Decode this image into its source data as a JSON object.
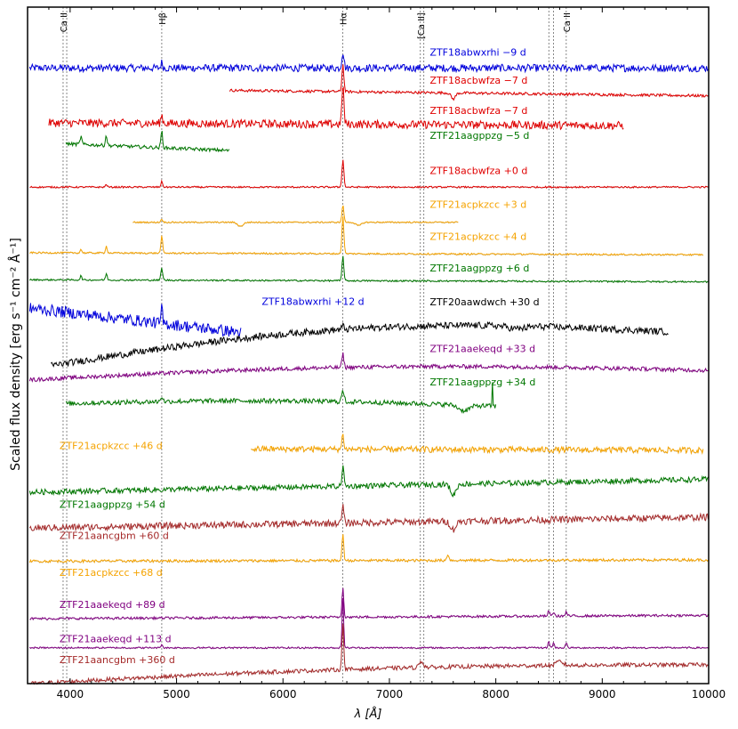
{
  "chart_data": {
    "type": "line",
    "title": "",
    "xlabel": "λ [Å]",
    "ylabel": "Scaled flux density [erg s⁻¹ cm⁻² Å⁻¹]",
    "xlim": [
      3600,
      10000
    ],
    "xticks": [
      4000,
      5000,
      6000,
      7000,
      8000,
      9000,
      10000
    ],
    "y_axis": "arbitrary offset units, 0 = bottom, 100 = top",
    "lines": [
      {
        "label": "Ca II",
        "wavelength": 3934
      },
      {
        "label": "",
        "wavelength": 3968
      },
      {
        "label": "Hβ",
        "wavelength": 4861
      },
      {
        "label": "Hα",
        "wavelength": 6563
      },
      {
        "label": "[Ca II]",
        "wavelength": 7291
      },
      {
        "label": "",
        "wavelength": 7324
      },
      {
        "label": "",
        "wavelength": 8498
      },
      {
        "label": "",
        "wavelength": 8542
      },
      {
        "label": "Ca II",
        "wavelength": 8662
      }
    ],
    "series": [
      {
        "name": "ZTF18abwxrhi −9 d",
        "color": "#0000dd",
        "x_range": [
          3620,
          10000
        ],
        "level": 91.0,
        "trend": [
          0,
          0
        ],
        "noise": 0.55,
        "emission": [
          [
            6563,
            2.4,
            10
          ],
          [
            4861,
            0.8,
            8
          ]
        ],
        "absorption": [],
        "label_wavelength": 7380,
        "label_level": 92.8
      },
      {
        "name": "ZTF18acbwfza −7 d",
        "color": "#e00000",
        "x_range": [
          5500,
          10000
        ],
        "level": 86.9,
        "trend": [
          0.8,
          0
        ],
        "noise": 0.2,
        "emission": [
          [
            6563,
            4.0,
            9
          ]
        ],
        "absorption": [
          [
            7600,
            0.9,
            20
          ]
        ],
        "label_wavelength": 7380,
        "label_level": 88.7
      },
      {
        "name": "ZTF18acbwfza −7 d",
        "color": "#e00000",
        "x_range": [
          3800,
          9200
        ],
        "level": 82.5,
        "trend": [
          0.4,
          0
        ],
        "noise": 0.6,
        "emission": [
          [
            6563,
            6.0,
            9
          ],
          [
            4861,
            1.2,
            9
          ]
        ],
        "absorption": [],
        "label_wavelength": 7380,
        "label_level": 84.2
      },
      {
        "name": "ZTF21aagppzg −5 d",
        "color": "#007700",
        "x_range": [
          3960,
          5500
        ],
        "level": 78.8,
        "trend": [
          1.0,
          0
        ],
        "noise": 0.25,
        "emission": [
          [
            4861,
            2.5,
            8
          ],
          [
            4340,
            1.5,
            8
          ],
          [
            4102,
            1.2,
            8
          ]
        ],
        "absorption": [],
        "label_wavelength": 7380,
        "label_level": 80.5
      },
      {
        "name": "ZTF18acbwfza +0 d",
        "color": "#e00000",
        "x_range": [
          3620,
          10000
        ],
        "level": 73.4,
        "trend": [
          0,
          0
        ],
        "noise": 0.12,
        "emission": [
          [
            6563,
            4.0,
            9
          ],
          [
            4861,
            0.8,
            8
          ],
          [
            4340,
            0.4,
            8
          ]
        ],
        "absorption": [],
        "label_wavelength": 7380,
        "label_level": 75.3
      },
      {
        "name": "ZTF21acpkzcc +3 d",
        "color": "#f5a300",
        "x_range": [
          4590,
          7650
        ],
        "level": 68.2,
        "trend": [
          0,
          0
        ],
        "noise": 0.1,
        "emission": [
          [
            6563,
            2.5,
            9
          ],
          [
            4861,
            0.5,
            8
          ]
        ],
        "absorption": [
          [
            5600,
            0.6,
            25
          ],
          [
            6710,
            0.5,
            25
          ]
        ],
        "label_wavelength": 7380,
        "label_level": 70.3
      },
      {
        "name": "ZTF21acpkzcc +4 d",
        "color": "#f5a300",
        "x_range": [
          3620,
          9950
        ],
        "level": 63.4,
        "trend": [
          0.3,
          0
        ],
        "noise": 0.12,
        "emission": [
          [
            6563,
            5.5,
            9
          ],
          [
            4861,
            2.5,
            8
          ],
          [
            4340,
            1.0,
            8
          ],
          [
            4102,
            0.5,
            8
          ]
        ],
        "absorption": [],
        "label_wavelength": 7380,
        "label_level": 65.6
      },
      {
        "name": "ZTF21aagppzg +6 d",
        "color": "#007700",
        "x_range": [
          3620,
          10000
        ],
        "level": 59.4,
        "trend": [
          0.3,
          0
        ],
        "noise": 0.12,
        "emission": [
          [
            6563,
            3.8,
            8
          ],
          [
            4861,
            1.8,
            8
          ],
          [
            4340,
            0.9,
            8
          ],
          [
            4102,
            0.6,
            8
          ]
        ],
        "absorption": [],
        "label_wavelength": 7380,
        "label_level": 60.9
      },
      {
        "name": "ZTF18abwxrhi +12 d",
        "color": "#0000dd",
        "x_range": [
          3620,
          5610
        ],
        "level": 53.5,
        "trend": [
          2.0,
          -1.6
        ],
        "noise": 0.85,
        "emission": [
          [
            4861,
            2.5,
            6
          ]
        ],
        "absorption": [],
        "label_wavelength": 5800,
        "label_level": 56.0
      },
      {
        "name": "ZTF20aawdwch +30 d",
        "color": "#000000",
        "x_range": [
          3820,
          9620
        ],
        "level": 50.0,
        "trend": [
          -3.0,
          2.0
        ],
        "noise": 0.5,
        "hump": 3.0,
        "emission": [
          [
            6563,
            0.5,
            10
          ]
        ],
        "absorption": [
          [
            8200,
            0.4,
            80
          ]
        ],
        "label_wavelength": 7380,
        "label_level": 55.9
      },
      {
        "name": "ZTF21aaekeqd +33 d",
        "color": "#800080",
        "x_range": [
          3620,
          10000
        ],
        "level": 46.7,
        "trend": [
          -1.8,
          -0.4
        ],
        "noise": 0.3,
        "hump": 1.2,
        "emission": [
          [
            6563,
            2.0,
            9
          ]
        ],
        "absorption": [],
        "label_wavelength": 7380,
        "label_level": 49.0
      },
      {
        "name": "ZTF21aagppzg +34 d",
        "color": "#007700",
        "x_range": [
          3960,
          8000
        ],
        "level": 41.0,
        "trend": [
          0.4,
          0
        ],
        "noise": 0.35,
        "hump": 0.6,
        "emission": [
          [
            6563,
            1.5,
            12
          ],
          [
            4861,
            0.8,
            10
          ],
          [
            7967,
            3.5,
            3
          ]
        ],
        "absorption": [
          [
            7700,
            0.8,
            50
          ]
        ],
        "label_wavelength": 7380,
        "label_level": 44.1
      },
      {
        "name": "ZTF21acpkzcc +46 d",
        "color": "#f5a300",
        "x_range": [
          5700,
          9950
        ],
        "level": 34.5,
        "trend": [
          0.2,
          0
        ],
        "noise": 0.45,
        "emission": [
          [
            6563,
            2.2,
            9
          ]
        ],
        "absorption": [],
        "label_wavelength": 3900,
        "label_level": 34.7
      },
      {
        "name": "ZTF21aagppzg +54 d",
        "color": "#007700",
        "x_range": [
          3620,
          10000
        ],
        "level": 30.5,
        "trend": [
          -2.2,
          -0.3
        ],
        "noise": 0.4,
        "emission": [
          [
            6563,
            3.0,
            9
          ]
        ],
        "absorption": [
          [
            7600,
            1.6,
            25
          ]
        ],
        "label_wavelength": 3900,
        "label_level": 26.0
      },
      {
        "name": "ZTF21aancgbm +60 d",
        "color": "#a52a2a",
        "x_range": [
          3620,
          10000
        ],
        "level": 25.0,
        "trend": [
          -2.0,
          -0.4
        ],
        "noise": 0.5,
        "emission": [
          [
            6563,
            2.5,
            9
          ]
        ],
        "absorption": [
          [
            7600,
            1.2,
            25
          ]
        ],
        "label_wavelength": 3900,
        "label_level": 21.4
      },
      {
        "name": "ZTF21acpkzcc +68 d",
        "color": "#f5a300",
        "x_range": [
          3620,
          10000
        ],
        "level": 18.6,
        "trend": [
          -0.5,
          -0.3
        ],
        "noise": 0.2,
        "emission": [
          [
            6563,
            4.0,
            8
          ],
          [
            7550,
            0.9,
            10
          ]
        ],
        "absorption": [],
        "label_wavelength": 3900,
        "label_level": 15.9
      },
      {
        "name": "ZTF21aaekeqd +89 d",
        "color": "#800080",
        "x_range": [
          3620,
          10000
        ],
        "level": 10.1,
        "trend": [
          -0.5,
          0
        ],
        "noise": 0.18,
        "emission": [
          [
            6563,
            4.5,
            8
          ],
          [
            8498,
            0.8,
            8
          ],
          [
            8542,
            0.6,
            8
          ],
          [
            8662,
            0.6,
            8
          ]
        ],
        "absorption": [],
        "label_wavelength": 3900,
        "label_level": 11.2
      },
      {
        "name": "ZTF21aaekeqd +113 d",
        "color": "#800080",
        "x_range": [
          3620,
          10000
        ],
        "level": 5.3,
        "trend": [
          0,
          0
        ],
        "noise": 0.12,
        "emission": [
          [
            6563,
            7.5,
            7
          ],
          [
            8498,
            0.9,
            8
          ],
          [
            8542,
            0.7,
            8
          ],
          [
            8662,
            0.7,
            8
          ],
          [
            4861,
            0.5,
            8
          ]
        ],
        "absorption": [],
        "label_wavelength": 3900,
        "label_level": 6.1
      },
      {
        "name": "ZTF21aancgbm +360 d",
        "color": "#a52a2a",
        "x_range": [
          3620,
          10000
        ],
        "level": 1.3,
        "trend": [
          -1.3,
          1.5
        ],
        "noise": 0.3,
        "hump": 0.8,
        "emission": [
          [
            6563,
            7.0,
            8
          ],
          [
            7300,
            0.9,
            20
          ],
          [
            8600,
            0.6,
            30
          ]
        ],
        "absorption": [],
        "label_wavelength": 3900,
        "label_level": 3.0
      }
    ]
  }
}
